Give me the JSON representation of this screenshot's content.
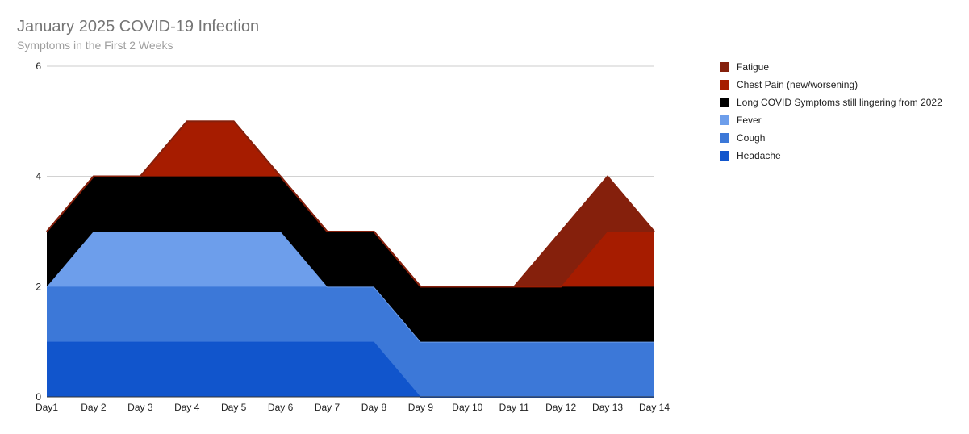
{
  "chart_data": {
    "type": "area",
    "stacked": true,
    "title": "January 2025 COVID-19 Infection",
    "subtitle": "Symptoms in the First 2 Weeks",
    "xlabel": "",
    "ylabel": "",
    "categories": [
      "Day1",
      "Day 2",
      "Day 3",
      "Day 4",
      "Day 5",
      "Day 6",
      "Day 7",
      "Day 8",
      "Day 9",
      "Day 10",
      "Day 11",
      "Day 12",
      "Day 13",
      "Day 14"
    ],
    "ylim": [
      0,
      6
    ],
    "yticks": [
      "0",
      "2",
      "4",
      "6"
    ],
    "grid": true,
    "legend_position": "right",
    "series": [
      {
        "name": "Headache",
        "color": "#1155cc",
        "values": [
          1,
          1,
          1,
          1,
          1,
          1,
          1,
          1,
          0,
          0,
          0,
          0,
          0,
          0
        ]
      },
      {
        "name": "Cough",
        "color": "#3c78d8",
        "values": [
          1,
          1,
          1,
          1,
          1,
          1,
          1,
          1,
          1,
          1,
          1,
          1,
          1,
          1
        ]
      },
      {
        "name": "Fever",
        "color": "#6d9eeb",
        "values": [
          0,
          1,
          1,
          1,
          1,
          1,
          0,
          0,
          0,
          0,
          0,
          0,
          0,
          0
        ]
      },
      {
        "name": "Long COVID Symptoms still lingering from 2022",
        "color": "#000000",
        "values": [
          1,
          1,
          1,
          1,
          1,
          1,
          1,
          1,
          1,
          1,
          1,
          1,
          1,
          1
        ]
      },
      {
        "name": "Chest Pain (new/worsening)",
        "color": "#a61c00",
        "values": [
          0,
          0,
          0,
          1,
          1,
          0,
          0,
          0,
          0,
          0,
          0,
          0,
          1,
          1
        ]
      },
      {
        "name": "Fatigue",
        "color": "#85200c",
        "values": [
          0,
          0,
          0,
          0,
          0,
          0,
          0,
          0,
          0,
          0,
          0,
          1,
          1,
          0
        ]
      }
    ],
    "legend_order": [
      "Fatigue",
      "Chest Pain (new/worsening)",
      "Long COVID Symptoms still lingering from 2022",
      "Fever",
      "Cough",
      "Headache"
    ]
  }
}
